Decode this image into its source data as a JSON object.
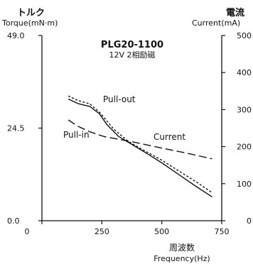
{
  "chart_data": {
    "type": "line",
    "title": "PLG20-1100",
    "subtitle": "12V  2相励磁",
    "y_left": {
      "label_jp": "トルク",
      "label": "Torque(mN·m)",
      "ylim": [
        0,
        49.0
      ],
      "ticks": [
        "0.0",
        "24.5",
        "49.0"
      ],
      "tick_values": [
        0,
        24.5,
        49.0
      ]
    },
    "y_right": {
      "label_jp": "電流",
      "label": "Current(mA)",
      "ylim": [
        0,
        500
      ],
      "ticks": [
        "0",
        "100",
        "200",
        "300",
        "400",
        "500"
      ],
      "tick_values": [
        0,
        100,
        200,
        300,
        400,
        500
      ]
    },
    "x_axis": {
      "label_jp": "周波数",
      "label": "Frequency(Hz)",
      "xlim": [
        0,
        750
      ],
      "ticks": [
        "0",
        "250",
        "500",
        "750"
      ],
      "tick_values": [
        0,
        250,
        500,
        750
      ]
    },
    "series": [
      {
        "name": "Pull-out",
        "axis": "left",
        "style": "dotted",
        "x": [
          110,
          150,
          200,
          240,
          300,
          360,
          420,
          500,
          580,
          650,
          710
        ],
        "y": [
          33.0,
          31.8,
          30.9,
          28.7,
          24.2,
          21.0,
          18.8,
          16.0,
          12.8,
          10.0,
          7.4
        ]
      },
      {
        "name": "Pull-in",
        "axis": "left",
        "style": "solid",
        "x": [
          110,
          150,
          200,
          240,
          270,
          320,
          380,
          440,
          500,
          580,
          640,
          710
        ],
        "y": [
          32.2,
          31.0,
          30.2,
          28.3,
          25.5,
          22.3,
          20.0,
          17.7,
          15.3,
          11.8,
          9.2,
          6.3
        ]
      },
      {
        "name": "Current",
        "axis": "right",
        "style": "dashed",
        "x": [
          110,
          150,
          200,
          260,
          320,
          400,
          500,
          600,
          710
        ],
        "y": [
          272,
          255,
          240,
          227,
          220,
          210,
          196,
          183,
          167
        ]
      }
    ],
    "annotations": [
      {
        "text": "Pull-out"
      },
      {
        "text": "Pull-in"
      },
      {
        "text": "Current"
      }
    ],
    "grid": false,
    "legend": "none"
  }
}
